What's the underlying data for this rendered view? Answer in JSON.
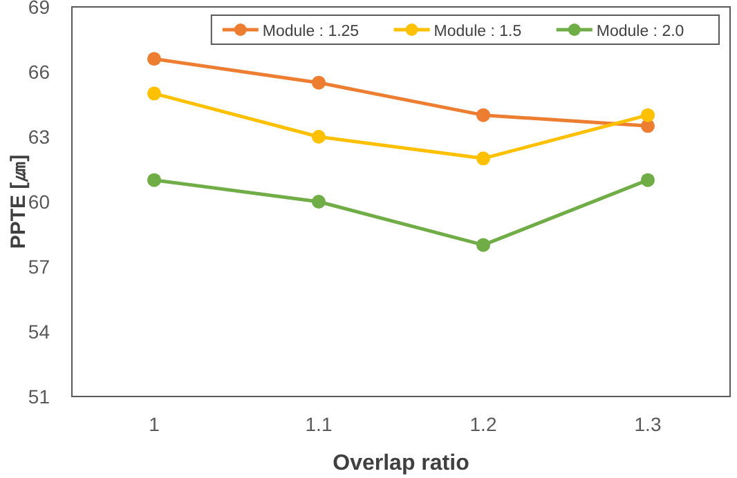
{
  "chart_data": {
    "type": "line",
    "xlabel": "Overlap ratio",
    "ylabel": "PPTE [㎛]",
    "categories": [
      "1",
      "1.1",
      "1.2",
      "1.3"
    ],
    "series": [
      {
        "name": "Module : 1.25",
        "color": "#ed7d31",
        "values": [
          66.6,
          65.5,
          64.0,
          63.5
        ]
      },
      {
        "name": "Module : 1.5",
        "color": "#ffc000",
        "values": [
          65.0,
          63.0,
          62.0,
          64.0
        ]
      },
      {
        "name": "Module : 2.0",
        "color": "#70ad47",
        "values": [
          61.0,
          60.0,
          58.0,
          61.0
        ]
      }
    ],
    "ylim": [
      51,
      69
    ],
    "yticks": [
      51,
      54,
      57,
      60,
      63,
      66,
      69
    ],
    "grid": false,
    "legend": "top right",
    "marker": "circle",
    "line_style": "solid"
  }
}
